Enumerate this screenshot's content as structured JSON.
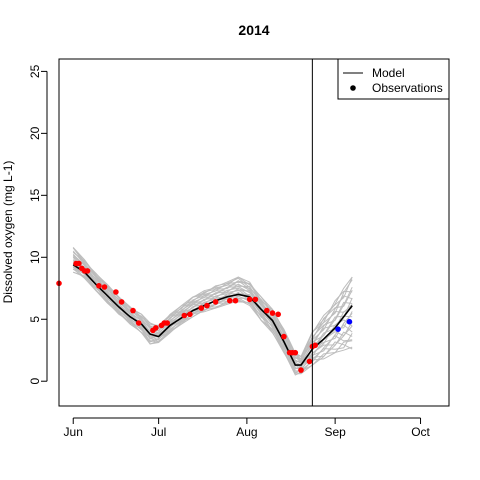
{
  "chart_data": {
    "type": "line",
    "title": "2014",
    "ylabel": "Dissolved oxygen (mg L-1)",
    "xlabel": "",
    "xlim": [
      "2014-05-27",
      "2014-10-11"
    ],
    "ylim": [
      -2,
      26
    ],
    "x_ticks": [
      {
        "date": "2014-06-01",
        "label": "Jun"
      },
      {
        "date": "2014-07-01",
        "label": "Jul"
      },
      {
        "date": "2014-08-01",
        "label": "Aug"
      },
      {
        "date": "2014-09-01",
        "label": "Sep"
      },
      {
        "date": "2014-10-01",
        "label": "Oct"
      }
    ],
    "y_ticks": [
      0,
      5,
      10,
      15,
      20,
      25
    ],
    "vertical_line_date": "2014-08-24",
    "grid": false,
    "legend": {
      "position": "top-right",
      "entries": [
        {
          "label": "Model",
          "symbol": "line"
        },
        {
          "label": "Observations",
          "symbol": "point"
        }
      ]
    },
    "colors": {
      "model": "#000000",
      "ensemble": "#bdbdbd",
      "observations_fit": "#ff0000",
      "observations_forecast": "#0000ff"
    },
    "model": {
      "x": [
        "2014-06-01",
        "2014-06-05",
        "2014-06-09",
        "2014-06-13",
        "2014-06-17",
        "2014-06-21",
        "2014-06-25",
        "2014-06-28",
        "2014-07-01",
        "2014-07-05",
        "2014-07-09",
        "2014-07-13",
        "2014-07-17",
        "2014-07-21",
        "2014-07-25",
        "2014-07-29",
        "2014-08-02",
        "2014-08-06",
        "2014-08-10",
        "2014-08-14",
        "2014-08-18",
        "2014-08-20",
        "2014-08-24",
        "2014-08-28",
        "2014-09-01",
        "2014-09-04",
        "2014-09-07"
      ],
      "y": [
        9.4,
        8.8,
        7.8,
        6.9,
        6.0,
        5.2,
        4.6,
        3.8,
        3.6,
        4.5,
        5.1,
        5.7,
        6.1,
        6.5,
        6.8,
        7.0,
        6.8,
        5.8,
        4.9,
        3.2,
        1.3,
        1.3,
        2.6,
        3.4,
        4.3,
        5.2,
        6.1
      ]
    },
    "ensemble_range": {
      "x": [
        "2014-06-01",
        "2014-06-05",
        "2014-06-09",
        "2014-06-13",
        "2014-06-17",
        "2014-06-21",
        "2014-06-25",
        "2014-06-28",
        "2014-07-01",
        "2014-07-05",
        "2014-07-09",
        "2014-07-13",
        "2014-07-17",
        "2014-07-21",
        "2014-07-25",
        "2014-07-29",
        "2014-08-02",
        "2014-08-06",
        "2014-08-10",
        "2014-08-14",
        "2014-08-18",
        "2014-08-20",
        "2014-08-24",
        "2014-08-28",
        "2014-09-01",
        "2014-09-04",
        "2014-09-07"
      ],
      "low": [
        8.8,
        8.3,
        7.3,
        6.3,
        5.4,
        4.6,
        3.9,
        3.0,
        3.1,
        3.9,
        4.6,
        5.2,
        5.6,
        5.9,
        6.2,
        6.4,
        6.1,
        4.9,
        3.9,
        2.3,
        0.5,
        0.6,
        1.3,
        1.8,
        2.3,
        2.5,
        2.6
      ],
      "high": [
        10.8,
        9.8,
        8.7,
        7.8,
        6.8,
        6.0,
        5.4,
        4.7,
        4.5,
        5.4,
        6.1,
        6.8,
        7.3,
        7.7,
        8.0,
        8.4,
        8.0,
        6.8,
        5.8,
        4.2,
        2.3,
        2.0,
        4.0,
        5.3,
        6.5,
        7.5,
        8.4
      ]
    },
    "observations": {
      "x": [
        "2014-05-27",
        "2014-06-02",
        "2014-06-03",
        "2014-06-04",
        "2014-06-05",
        "2014-06-06",
        "2014-06-10",
        "2014-06-12",
        "2014-06-16",
        "2014-06-18",
        "2014-06-22",
        "2014-06-24",
        "2014-06-29",
        "2014-06-30",
        "2014-07-02",
        "2014-07-03",
        "2014-07-04",
        "2014-07-10",
        "2014-07-12",
        "2014-07-16",
        "2014-07-18",
        "2014-07-21",
        "2014-07-26",
        "2014-07-28",
        "2014-08-02",
        "2014-08-04",
        "2014-08-08",
        "2014-08-10",
        "2014-08-12",
        "2014-08-14",
        "2014-08-16",
        "2014-08-17",
        "2014-08-18",
        "2014-08-20",
        "2014-08-23",
        "2014-08-24",
        "2014-08-25"
      ],
      "y": [
        7.9,
        9.5,
        9.5,
        9.1,
        8.9,
        8.9,
        7.7,
        7.6,
        7.2,
        6.4,
        5.7,
        4.7,
        4.1,
        4.3,
        4.5,
        4.7,
        4.7,
        5.3,
        5.4,
        5.9,
        6.1,
        6.4,
        6.5,
        6.5,
        6.6,
        6.6,
        5.7,
        5.5,
        5.4,
        3.6,
        2.3,
        2.3,
        2.3,
        0.9,
        1.6,
        2.8,
        2.9
      ]
    },
    "observations_forecast": {
      "x": [
        "2014-09-02",
        "2014-09-06"
      ],
      "y": [
        4.2,
        4.8
      ]
    }
  }
}
